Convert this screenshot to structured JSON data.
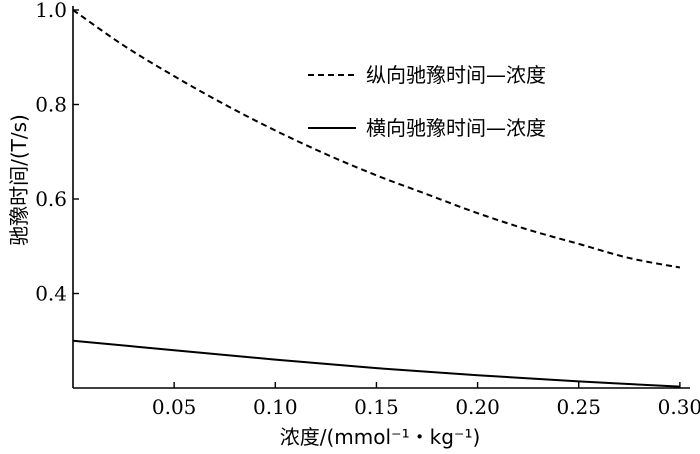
{
  "chart_data": {
    "type": "line",
    "xlabel": "浓度/(mmol⁻¹・kg⁻¹)",
    "ylabel": "驰豫时间/(T/s)",
    "xlim": [
      0,
      0.305
    ],
    "ylim": [
      0.2,
      1.0
    ],
    "xticks": [
      0.05,
      0.1,
      0.15,
      0.2,
      0.25,
      0.3
    ],
    "xtick_labels": [
      "0.05",
      "0.10",
      "0.15",
      "0.20",
      "0.25",
      "0.30"
    ],
    "yticks": [
      0.4,
      0.6,
      0.8,
      1.0
    ],
    "ytick_labels": [
      "0.4",
      "0.6",
      "0.8",
      "1.0"
    ],
    "grid": false,
    "legend_position": "top-right",
    "series": [
      {
        "name": "纵向驰豫时间—浓度",
        "style": "dashed",
        "color": "#000000",
        "x": [
          0,
          0.025,
          0.05,
          0.075,
          0.1,
          0.125,
          0.15,
          0.175,
          0.2,
          0.225,
          0.25,
          0.275,
          0.3
        ],
        "y": [
          1.0,
          0.925,
          0.86,
          0.8,
          0.745,
          0.695,
          0.65,
          0.61,
          0.57,
          0.535,
          0.505,
          0.475,
          0.455
        ]
      },
      {
        "name": "横向驰豫时间—浓度",
        "style": "solid",
        "color": "#000000",
        "x": [
          0,
          0.05,
          0.1,
          0.15,
          0.2,
          0.25,
          0.3
        ],
        "y": [
          0.3,
          0.28,
          0.26,
          0.242,
          0.227,
          0.214,
          0.203
        ]
      }
    ]
  }
}
